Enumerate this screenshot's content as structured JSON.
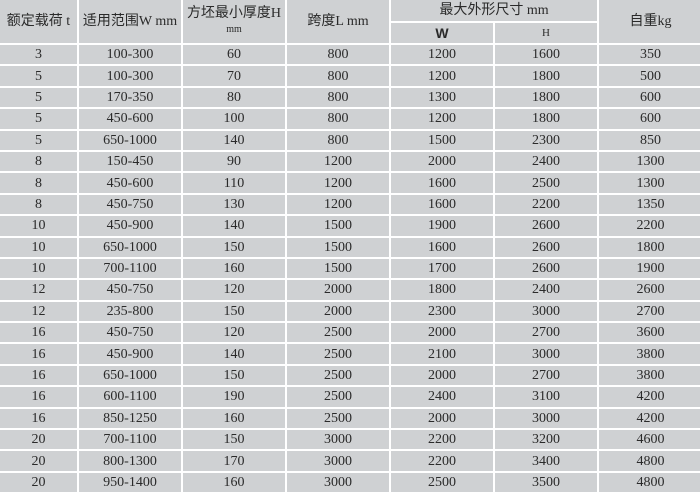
{
  "table": {
    "headers": {
      "load": "额定载荷 t",
      "range": "适用范围W mm",
      "thickness": "方坯最小厚度H",
      "thickness_unit": "mm",
      "span": "跨度L mm",
      "max_dims": "最大外形尺寸 mm",
      "w": "W",
      "h": "H",
      "weight": "自重kg"
    },
    "rows": [
      [
        "3",
        "100-300",
        "60",
        "800",
        "1200",
        "1600",
        "350"
      ],
      [
        "5",
        "100-300",
        "70",
        "800",
        "1200",
        "1800",
        "500"
      ],
      [
        "5",
        "170-350",
        "80",
        "800",
        "1300",
        "1800",
        "600"
      ],
      [
        "5",
        "450-600",
        "100",
        "800",
        "1200",
        "1800",
        "600"
      ],
      [
        "5",
        "650-1000",
        "140",
        "800",
        "1500",
        "2300",
        "850"
      ],
      [
        "8",
        "150-450",
        "90",
        "1200",
        "2000",
        "2400",
        "1300"
      ],
      [
        "8",
        "450-600",
        "110",
        "1200",
        "1600",
        "2500",
        "1300"
      ],
      [
        "8",
        "450-750",
        "130",
        "1200",
        "1600",
        "2200",
        "1350"
      ],
      [
        "10",
        "450-900",
        "140",
        "1500",
        "1900",
        "2600",
        "2200"
      ],
      [
        "10",
        "650-1000",
        "150",
        "1500",
        "1600",
        "2600",
        "1800"
      ],
      [
        "10",
        "700-1100",
        "160",
        "1500",
        "1700",
        "2600",
        "1900"
      ],
      [
        "12",
        "450-750",
        "120",
        "2000",
        "1800",
        "2400",
        "2600"
      ],
      [
        "12",
        "235-800",
        "150",
        "2000",
        "2300",
        "3000",
        "2700"
      ],
      [
        "16",
        "450-750",
        "120",
        "2500",
        "2000",
        "2700",
        "3600"
      ],
      [
        "16",
        "450-900",
        "140",
        "2500",
        "2100",
        "3000",
        "3800"
      ],
      [
        "16",
        "650-1000",
        "150",
        "2500",
        "2000",
        "2700",
        "3800"
      ],
      [
        "16",
        "600-1100",
        "190",
        "2500",
        "2400",
        "3100",
        "4200"
      ],
      [
        "16",
        "850-1250",
        "160",
        "2500",
        "2000",
        "3000",
        "4200"
      ],
      [
        "20",
        "700-1100",
        "150",
        "3000",
        "2200",
        "3200",
        "4600"
      ],
      [
        "20",
        "800-1300",
        "170",
        "3000",
        "2200",
        "3400",
        "4800"
      ],
      [
        "20",
        "950-1400",
        "160",
        "3000",
        "2500",
        "3500",
        "4800"
      ]
    ]
  }
}
